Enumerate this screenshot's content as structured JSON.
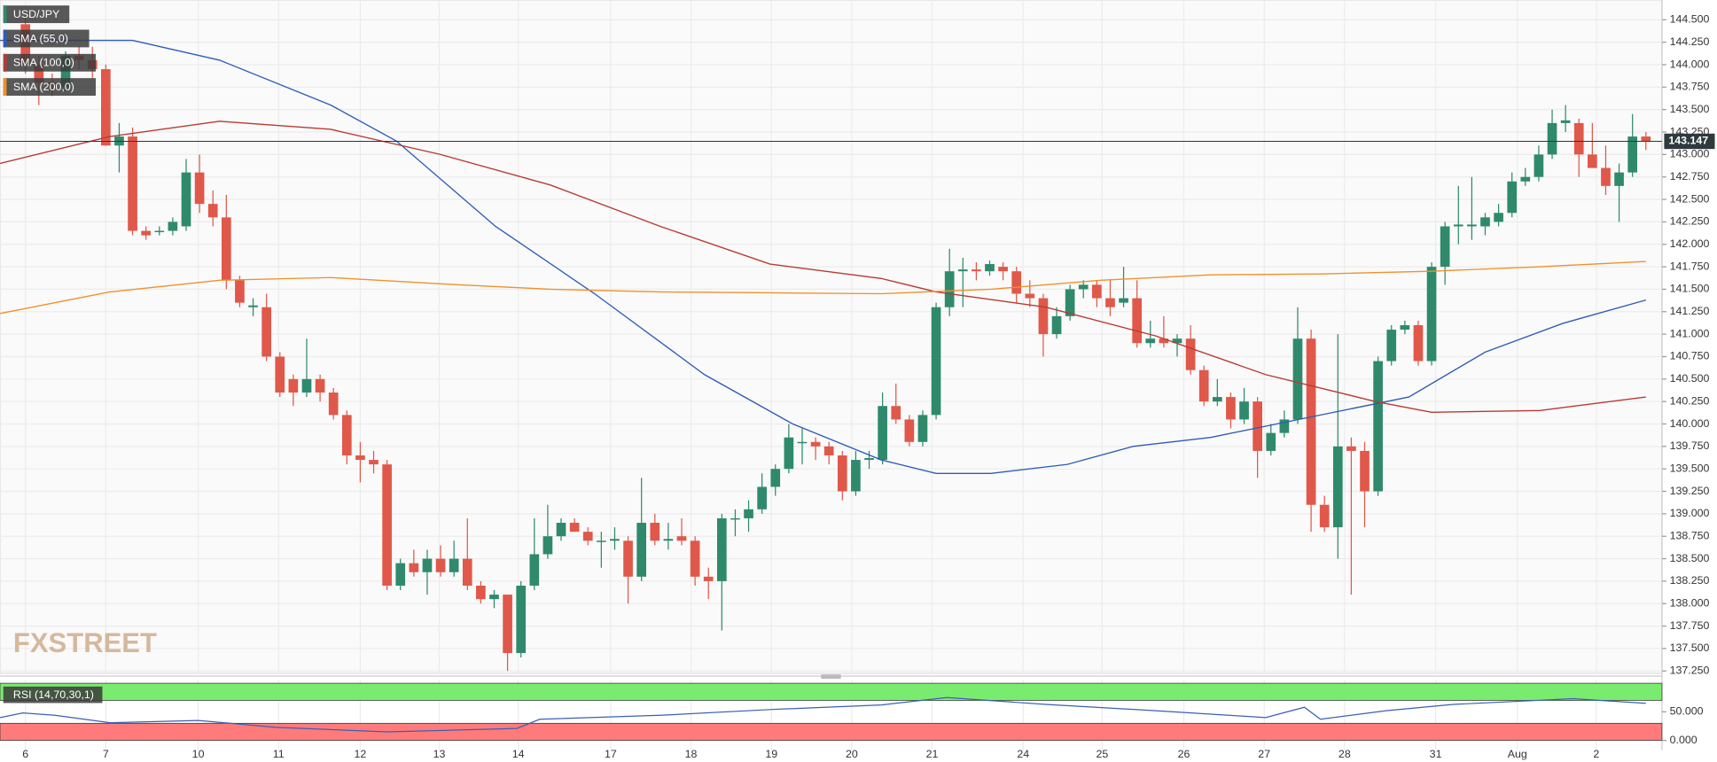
{
  "chart_data": {
    "type": "candlestick",
    "symbol": "USD/JPY",
    "watermark": "FXSTREET",
    "up_color": "#2f8a6c",
    "down_color": "#e0584a",
    "grid": true,
    "last_price": 143.147,
    "xlim": [
      -1.9,
      122.2
    ],
    "ylim": [
      137.224,
      144.72
    ],
    "xticks": [
      {
        "value": 0,
        "label": "6"
      },
      {
        "value": 6,
        "label": "7"
      },
      {
        "value": 12.9,
        "label": "10"
      },
      {
        "value": 18.9,
        "label": "11"
      },
      {
        "value": 25,
        "label": "12"
      },
      {
        "value": 30.9,
        "label": "13"
      },
      {
        "value": 36.8,
        "label": "14"
      },
      {
        "value": 43.7,
        "label": "17"
      },
      {
        "value": 49.7,
        "label": "18"
      },
      {
        "value": 55.7,
        "label": "19"
      },
      {
        "value": 61.7,
        "label": "20"
      },
      {
        "value": 67.7,
        "label": "21"
      },
      {
        "value": 74.5,
        "label": "24"
      },
      {
        "value": 80.4,
        "label": "25"
      },
      {
        "value": 86.5,
        "label": "26"
      },
      {
        "value": 92.5,
        "label": "27"
      },
      {
        "value": 98.5,
        "label": "28"
      },
      {
        "value": 105.3,
        "label": "31"
      },
      {
        "value": 111.4,
        "label": "Aug"
      },
      {
        "value": 117.3,
        "label": "2"
      }
    ],
    "yticks": [
      {
        "value": 137.25,
        "label": "137.250"
      },
      {
        "value": 137.5,
        "label": "137.500"
      },
      {
        "value": 137.75,
        "label": "137.750"
      },
      {
        "value": 138.0,
        "label": "138.000"
      },
      {
        "value": 138.25,
        "label": "138.250"
      },
      {
        "value": 138.5,
        "label": "138.500"
      },
      {
        "value": 138.75,
        "label": "138.750"
      },
      {
        "value": 139.0,
        "label": "139.000"
      },
      {
        "value": 139.25,
        "label": "139.250"
      },
      {
        "value": 139.5,
        "label": "139.500"
      },
      {
        "value": 139.75,
        "label": "139.750"
      },
      {
        "value": 140.0,
        "label": "140.000"
      },
      {
        "value": 140.25,
        "label": "140.250"
      },
      {
        "value": 140.5,
        "label": "140.500"
      },
      {
        "value": 140.75,
        "label": "140.750"
      },
      {
        "value": 141.0,
        "label": "141.000"
      },
      {
        "value": 141.25,
        "label": "141.250"
      },
      {
        "value": 141.5,
        "label": "141.500"
      },
      {
        "value": 141.75,
        "label": "141.750"
      },
      {
        "value": 142.0,
        "label": "142.000"
      },
      {
        "value": 142.25,
        "label": "142.250"
      },
      {
        "value": 142.5,
        "label": "142.500"
      },
      {
        "value": 142.75,
        "label": "142.750"
      },
      {
        "value": 143.0,
        "label": "143.000"
      },
      {
        "value": 143.25,
        "label": "143.250"
      },
      {
        "value": 143.5,
        "label": "143.500"
      },
      {
        "value": 143.75,
        "label": "143.750"
      },
      {
        "value": 144.0,
        "label": "144.000"
      },
      {
        "value": 144.25,
        "label": "144.250"
      },
      {
        "value": 144.5,
        "label": "144.500"
      }
    ],
    "ohlc": [
      [
        144.45,
        144.55,
        143.9,
        144.0
      ],
      [
        144.0,
        144.1,
        143.55,
        143.8
      ],
      [
        143.8,
        143.9,
        143.65,
        143.75
      ],
      [
        143.75,
        144.15,
        143.7,
        144.1
      ],
      [
        144.1,
        144.2,
        143.95,
        144.05
      ],
      [
        144.05,
        144.2,
        143.85,
        143.95
      ],
      [
        143.95,
        144.0,
        143.1,
        143.1
      ],
      [
        143.1,
        143.35,
        142.8,
        143.2
      ],
      [
        143.2,
        143.3,
        142.1,
        142.15
      ],
      [
        142.15,
        142.2,
        142.05,
        142.1
      ],
      [
        142.15,
        142.2,
        142.1,
        142.15
      ],
      [
        142.15,
        142.3,
        142.1,
        142.25
      ],
      [
        142.2,
        142.95,
        142.15,
        142.8
      ],
      [
        142.8,
        143.0,
        142.35,
        142.45
      ],
      [
        142.45,
        142.6,
        142.2,
        142.3
      ],
      [
        142.3,
        142.55,
        141.5,
        141.6
      ],
      [
        141.6,
        141.65,
        141.3,
        141.35
      ],
      [
        141.3,
        141.4,
        141.2,
        141.32
      ],
      [
        141.3,
        141.45,
        140.7,
        140.75
      ],
      [
        140.75,
        140.8,
        140.3,
        140.35
      ],
      [
        140.5,
        140.55,
        140.2,
        140.35
      ],
      [
        140.35,
        140.95,
        140.3,
        140.5
      ],
      [
        140.5,
        140.55,
        140.25,
        140.35
      ],
      [
        140.35,
        140.4,
        140.05,
        140.1
      ],
      [
        140.1,
        140.15,
        139.55,
        139.65
      ],
      [
        139.65,
        139.8,
        139.35,
        139.6
      ],
      [
        139.6,
        139.7,
        139.45,
        139.55
      ],
      [
        139.55,
        139.6,
        138.15,
        138.2
      ],
      [
        138.2,
        138.5,
        138.15,
        138.45
      ],
      [
        138.45,
        138.6,
        138.3,
        138.35
      ],
      [
        138.35,
        138.6,
        138.1,
        138.5
      ],
      [
        138.5,
        138.65,
        138.3,
        138.35
      ],
      [
        138.35,
        138.7,
        138.3,
        138.5
      ],
      [
        138.5,
        138.95,
        138.15,
        138.2
      ],
      [
        138.2,
        138.25,
        138.0,
        138.05
      ],
      [
        138.05,
        138.15,
        137.95,
        138.1
      ],
      [
        138.1,
        138.1,
        137.25,
        137.45
      ],
      [
        137.45,
        138.25,
        137.4,
        138.2
      ],
      [
        138.2,
        138.95,
        138.15,
        138.55
      ],
      [
        138.55,
        139.1,
        138.5,
        138.75
      ],
      [
        138.75,
        138.95,
        138.7,
        138.9
      ],
      [
        138.9,
        138.95,
        138.8,
        138.8
      ],
      [
        138.8,
        138.85,
        138.65,
        138.7
      ],
      [
        138.7,
        138.8,
        138.4,
        138.7
      ],
      [
        138.7,
        138.85,
        138.6,
        138.72
      ],
      [
        138.7,
        138.75,
        138.0,
        138.3
      ],
      [
        138.3,
        139.4,
        138.25,
        138.9
      ],
      [
        138.9,
        139.0,
        138.65,
        138.7
      ],
      [
        138.7,
        138.9,
        138.6,
        138.72
      ],
      [
        138.75,
        138.95,
        138.65,
        138.7
      ],
      [
        138.7,
        138.75,
        138.2,
        138.3
      ],
      [
        138.3,
        138.4,
        138.05,
        138.25
      ],
      [
        138.25,
        139.0,
        137.7,
        138.95
      ],
      [
        138.95,
        139.05,
        138.75,
        138.95
      ],
      [
        138.95,
        139.15,
        138.8,
        139.05
      ],
      [
        139.05,
        139.45,
        139.0,
        139.3
      ],
      [
        139.3,
        139.55,
        139.2,
        139.5
      ],
      [
        139.5,
        140.0,
        139.45,
        139.85
      ],
      [
        139.8,
        139.95,
        139.55,
        139.8
      ],
      [
        139.8,
        139.85,
        139.6,
        139.75
      ],
      [
        139.75,
        139.8,
        139.55,
        139.65
      ],
      [
        139.65,
        139.7,
        139.15,
        139.25
      ],
      [
        139.25,
        139.7,
        139.2,
        139.6
      ],
      [
        139.6,
        139.7,
        139.5,
        139.62
      ],
      [
        139.6,
        140.35,
        139.55,
        140.2
      ],
      [
        140.2,
        140.45,
        140.0,
        140.05
      ],
      [
        140.05,
        140.1,
        139.75,
        139.8
      ],
      [
        139.8,
        140.15,
        139.75,
        140.1
      ],
      [
        140.1,
        141.35,
        140.05,
        141.3
      ],
      [
        141.3,
        141.95,
        141.2,
        141.7
      ],
      [
        141.7,
        141.85,
        141.3,
        141.72
      ],
      [
        141.72,
        141.8,
        141.6,
        141.7
      ],
      [
        141.7,
        141.82,
        141.65,
        141.78
      ],
      [
        141.75,
        141.8,
        141.6,
        141.7
      ],
      [
        141.7,
        141.75,
        141.35,
        141.45
      ],
      [
        141.45,
        141.6,
        141.3,
        141.4
      ],
      [
        141.4,
        141.45,
        140.75,
        141.0
      ],
      [
        141.0,
        141.3,
        140.95,
        141.2
      ],
      [
        141.2,
        141.55,
        141.15,
        141.5
      ],
      [
        141.5,
        141.6,
        141.4,
        141.55
      ],
      [
        141.55,
        141.6,
        141.3,
        141.4
      ],
      [
        141.4,
        141.6,
        141.2,
        141.3
      ],
      [
        141.35,
        141.75,
        141.3,
        141.4
      ],
      [
        141.4,
        141.6,
        140.85,
        140.9
      ],
      [
        140.9,
        141.15,
        140.85,
        140.95
      ],
      [
        140.95,
        141.2,
        140.85,
        140.9
      ],
      [
        140.9,
        141.0,
        140.75,
        140.95
      ],
      [
        140.95,
        141.1,
        140.55,
        140.6
      ],
      [
        140.6,
        140.65,
        140.2,
        140.25
      ],
      [
        140.25,
        140.5,
        140.2,
        140.3
      ],
      [
        140.3,
        140.35,
        139.95,
        140.05
      ],
      [
        140.05,
        140.4,
        140.0,
        140.25
      ],
      [
        140.25,
        140.3,
        139.4,
        139.7
      ],
      [
        139.7,
        140.0,
        139.65,
        139.9
      ],
      [
        139.9,
        140.15,
        139.85,
        140.05
      ],
      [
        140.05,
        141.3,
        140.0,
        140.95
      ],
      [
        140.95,
        141.05,
        138.8,
        139.1
      ],
      [
        139.1,
        139.2,
        138.8,
        138.85
      ],
      [
        138.85,
        141.0,
        138.5,
        139.75
      ],
      [
        139.75,
        139.85,
        138.1,
        139.7
      ],
      [
        139.7,
        139.8,
        138.85,
        139.25
      ],
      [
        139.25,
        140.75,
        139.2,
        140.7
      ],
      [
        140.7,
        141.1,
        140.65,
        141.05
      ],
      [
        141.05,
        141.15,
        141.0,
        141.1
      ],
      [
        141.1,
        141.15,
        140.65,
        140.7
      ],
      [
        140.7,
        141.8,
        140.65,
        141.75
      ],
      [
        141.75,
        142.25,
        141.55,
        142.2
      ],
      [
        142.2,
        142.65,
        142.0,
        142.22
      ],
      [
        142.2,
        142.75,
        142.05,
        142.22
      ],
      [
        142.2,
        142.35,
        142.1,
        142.3
      ],
      [
        142.25,
        142.45,
        142.2,
        142.35
      ],
      [
        142.35,
        142.8,
        142.3,
        142.7
      ],
      [
        142.7,
        142.85,
        142.65,
        142.75
      ],
      [
        142.75,
        143.1,
        142.7,
        143.0
      ],
      [
        143.0,
        143.5,
        142.95,
        143.35
      ],
      [
        143.35,
        143.55,
        143.25,
        143.38
      ],
      [
        143.35,
        143.4,
        142.75,
        143.0
      ],
      [
        143.0,
        143.35,
        142.85,
        142.85
      ],
      [
        142.85,
        143.1,
        142.55,
        142.65
      ],
      [
        142.65,
        142.9,
        142.25,
        142.8
      ],
      [
        142.8,
        143.45,
        142.75,
        143.2
      ],
      [
        143.2,
        143.25,
        143.05,
        143.15
      ]
    ],
    "series": [
      {
        "name": "SMA (55,0)",
        "color": "#2f5cb8",
        "x": [
          -1.9,
          8,
          14.5,
          22.8,
          27.7,
          35.1,
          42.5,
          50.7,
          57.3,
          63.9,
          68,
          72.1,
          77.8,
          82.7,
          88.5,
          96.7,
          103.3,
          109,
          114.8,
          121
        ],
        "values": [
          144.27,
          144.27,
          144.05,
          143.55,
          143.15,
          142.2,
          141.45,
          140.55,
          140.0,
          139.6,
          139.45,
          139.45,
          139.55,
          139.75,
          139.85,
          140.1,
          140.3,
          140.8,
          141.12,
          141.38
        ]
      },
      {
        "name": "SMA (100,0)",
        "color": "#b83a32",
        "x": [
          -1.9,
          6.3,
          14.5,
          22.8,
          31,
          39.2,
          47.4,
          55.6,
          63.9,
          68,
          76.2,
          84.4,
          92.6,
          100.8,
          105,
          113.1,
          121
        ],
        "values": [
          142.9,
          143.2,
          143.37,
          143.28,
          143.0,
          142.66,
          142.2,
          141.78,
          141.62,
          141.47,
          141.3,
          140.98,
          140.55,
          140.25,
          140.13,
          140.15,
          140.3
        ]
      },
      {
        "name": "SMA (200,0)",
        "color": "#f0902a",
        "x": [
          -1.9,
          6.3,
          14.5,
          22.8,
          31,
          39.2,
          47.4,
          55.6,
          63.9,
          72.1,
          80.3,
          88.5,
          96.7,
          104.9,
          113.1,
          121
        ],
        "values": [
          141.23,
          141.47,
          141.6,
          141.63,
          141.56,
          141.5,
          141.47,
          141.46,
          141.45,
          141.5,
          141.6,
          141.66,
          141.67,
          141.7,
          141.75,
          141.81
        ]
      }
    ],
    "rsi": {
      "name": "RSI (14,70,30,1)",
      "color": "#3a5fb5",
      "ylim": [
        -17.3,
        105.8
      ],
      "yticks": [
        {
          "value": 0,
          "label": "0.000"
        },
        {
          "value": 50,
          "label": "50.000"
        }
      ],
      "overbought": [
        70,
        100
      ],
      "oversold": [
        0,
        30
      ],
      "x": [
        -1.9,
        -0.2,
        2.2,
        6.3,
        12.9,
        18.7,
        27,
        36.7,
        38.4,
        47.4,
        55.6,
        63.9,
        68.8,
        76.2,
        84.4,
        92.6,
        95.5,
        96.7,
        101.6,
        106.6,
        115.6,
        121
      ],
      "values": [
        40,
        48,
        44,
        31,
        35,
        23,
        15,
        21,
        37,
        44,
        54,
        62,
        75,
        63,
        52,
        40,
        58,
        37,
        52,
        63,
        73,
        65
      ]
    }
  }
}
